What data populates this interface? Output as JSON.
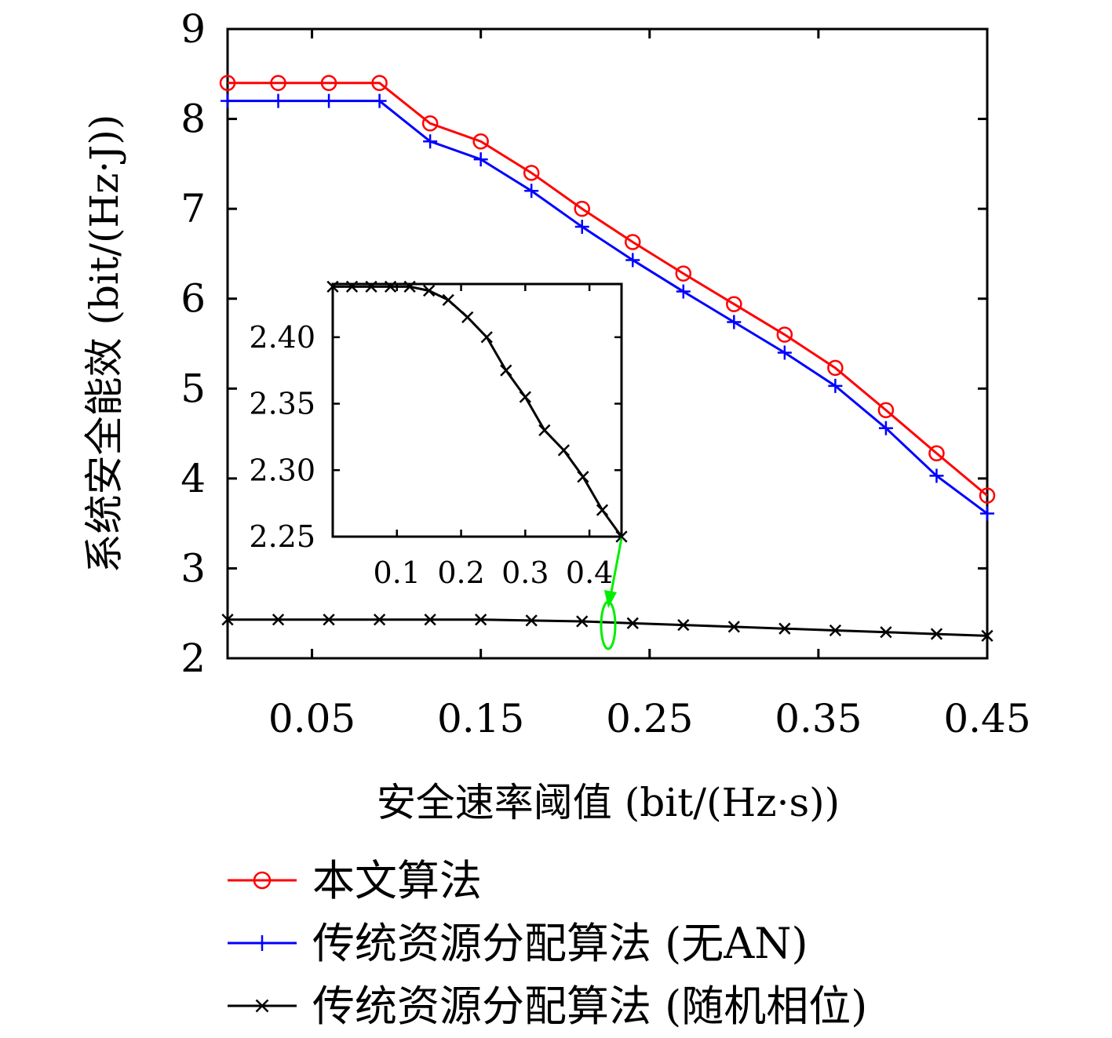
{
  "chart_data": {
    "type": "line",
    "xlabel": "安全速率阈值 (bit/(Hz·s))",
    "ylabel": "系统安全能效 (bit/(Hz·J))",
    "xlim": [
      0.0,
      0.45
    ],
    "ylim": [
      2,
      9
    ],
    "xticks": [
      "0.05",
      "0.15",
      "0.25",
      "0.35",
      "0.45"
    ],
    "yticks": [
      "2",
      "3",
      "4",
      "5",
      "6",
      "7",
      "8",
      "9"
    ],
    "x": [
      0.0,
      0.03,
      0.06,
      0.09,
      0.12,
      0.15,
      0.18,
      0.21,
      0.24,
      0.27,
      0.3,
      0.33,
      0.36,
      0.39,
      0.42,
      0.45
    ],
    "series": [
      {
        "name": "本文算法",
        "color": "#ff0000",
        "marker": "circle",
        "values": [
          8.4,
          8.4,
          8.4,
          8.4,
          7.95,
          7.75,
          7.4,
          7.0,
          6.63,
          6.28,
          5.94,
          5.6,
          5.23,
          4.76,
          4.28,
          3.81
        ]
      },
      {
        "name": "传统资源分配算法 (无AN)",
        "color": "#0000ff",
        "marker": "plus",
        "values": [
          8.2,
          8.2,
          8.2,
          8.2,
          7.75,
          7.55,
          7.2,
          6.8,
          6.43,
          6.08,
          5.74,
          5.4,
          5.03,
          4.56,
          4.03,
          3.61
        ]
      },
      {
        "name": "传统资源分配算法 (随机相位)",
        "color": "#000000",
        "marker": "x",
        "values": [
          2.43,
          2.43,
          2.43,
          2.43,
          2.43,
          2.43,
          2.42,
          2.41,
          2.39,
          2.37,
          2.35,
          2.33,
          2.31,
          2.29,
          2.27,
          2.25
        ]
      }
    ],
    "legend_position": "bottom",
    "inset": {
      "xlim": [
        0.0,
        0.45
      ],
      "ylim": [
        2.25,
        2.44
      ],
      "xticks": [
        "0.1",
        "0.2",
        "0.3",
        "0.4"
      ],
      "yticks": [
        "2.25",
        "2.30",
        "2.35",
        "2.40"
      ],
      "x": [
        0.0,
        0.03,
        0.06,
        0.09,
        0.12,
        0.15,
        0.18,
        0.21,
        0.24,
        0.27,
        0.3,
        0.33,
        0.36,
        0.39,
        0.42,
        0.45
      ],
      "values": [
        2.438,
        2.438,
        2.438,
        2.438,
        2.438,
        2.435,
        2.428,
        2.415,
        2.4,
        2.375,
        2.355,
        2.33,
        2.315,
        2.295,
        2.27,
        2.25
      ],
      "color": "#000000",
      "annotation_color": "#00ee00"
    }
  }
}
